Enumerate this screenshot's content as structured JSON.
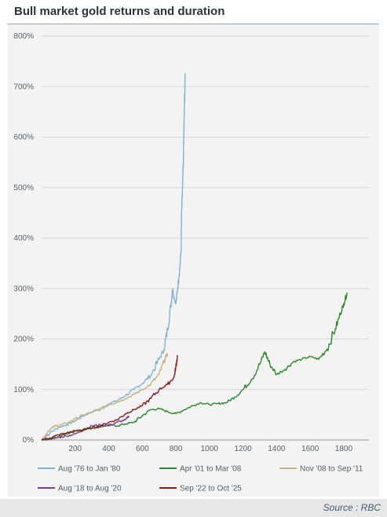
{
  "title": "Bull market gold returns and duration",
  "source": "Source : RBC",
  "chart_data": {
    "type": "line",
    "title": "Bull market gold returns and duration",
    "xlabel": "",
    "ylabel": "",
    "xlim": [
      0,
      1950
    ],
    "ylim": [
      0,
      800
    ],
    "x_ticks": [
      "200",
      "400",
      "600",
      "800",
      "1000",
      "1200",
      "1400",
      "1600",
      "1800"
    ],
    "y_ticks": [
      "0%",
      "100%",
      "200%",
      "300%",
      "400%",
      "500%",
      "600%",
      "700%",
      "800%"
    ],
    "grid": "horizontal",
    "legend_position": "bottom",
    "series": [
      {
        "name": "Aug '76 to Jan '80",
        "color": "#7fb3d3",
        "points": [
          [
            0,
            0
          ],
          [
            50,
            14
          ],
          [
            100,
            25
          ],
          [
            150,
            30
          ],
          [
            200,
            38
          ],
          [
            250,
            48
          ],
          [
            300,
            56
          ],
          [
            350,
            62
          ],
          [
            400,
            72
          ],
          [
            450,
            78
          ],
          [
            500,
            88
          ],
          [
            550,
            100
          ],
          [
            600,
            112
          ],
          [
            650,
            128
          ],
          [
            700,
            160
          ],
          [
            730,
            180
          ],
          [
            750,
            220
          ],
          [
            770,
            265
          ],
          [
            780,
            300
          ],
          [
            790,
            280
          ],
          [
            800,
            270
          ],
          [
            810,
            300
          ],
          [
            820,
            330
          ],
          [
            830,
            370
          ],
          [
            835,
            460
          ],
          [
            840,
            500
          ],
          [
            845,
            560
          ],
          [
            850,
            650
          ],
          [
            855,
            718
          ]
        ]
      },
      {
        "name": "Apr '01 to Mar '08",
        "color": "#2a8a2a",
        "points": [
          [
            0,
            0
          ],
          [
            50,
            2
          ],
          [
            100,
            6
          ],
          [
            150,
            12
          ],
          [
            200,
            18
          ],
          [
            250,
            22
          ],
          [
            300,
            24
          ],
          [
            350,
            26
          ],
          [
            400,
            30
          ],
          [
            450,
            28
          ],
          [
            500,
            32
          ],
          [
            550,
            35
          ],
          [
            600,
            48
          ],
          [
            650,
            60
          ],
          [
            700,
            62
          ],
          [
            750,
            56
          ],
          [
            800,
            52
          ],
          [
            850,
            60
          ],
          [
            900,
            68
          ],
          [
            950,
            74
          ],
          [
            1000,
            70
          ],
          [
            1050,
            72
          ],
          [
            1100,
            74
          ],
          [
            1150,
            85
          ],
          [
            1200,
            100
          ],
          [
            1250,
            120
          ],
          [
            1300,
            150
          ],
          [
            1330,
            175
          ],
          [
            1360,
            150
          ],
          [
            1400,
            130
          ],
          [
            1450,
            140
          ],
          [
            1500,
            155
          ],
          [
            1550,
            160
          ],
          [
            1600,
            165
          ],
          [
            1650,
            160
          ],
          [
            1700,
            180
          ],
          [
            1750,
            220
          ],
          [
            1780,
            250
          ],
          [
            1800,
            270
          ],
          [
            1820,
            292
          ]
        ]
      },
      {
        "name": "Nov '08 to Sep '11",
        "color": "#c8b27a",
        "points": [
          [
            0,
            0
          ],
          [
            40,
            18
          ],
          [
            80,
            28
          ],
          [
            120,
            30
          ],
          [
            160,
            35
          ],
          [
            200,
            42
          ],
          [
            250,
            50
          ],
          [
            300,
            55
          ],
          [
            350,
            60
          ],
          [
            400,
            70
          ],
          [
            450,
            75
          ],
          [
            500,
            82
          ],
          [
            550,
            90
          ],
          [
            600,
            100
          ],
          [
            650,
            110
          ],
          [
            700,
            130
          ],
          [
            730,
            155
          ],
          [
            750,
            172
          ]
        ]
      },
      {
        "name": "Aug '18 to Aug '20",
        "color": "#8a3a8a",
        "points": [
          [
            0,
            0
          ],
          [
            50,
            3
          ],
          [
            100,
            5
          ],
          [
            150,
            8
          ],
          [
            200,
            12
          ],
          [
            250,
            20
          ],
          [
            300,
            28
          ],
          [
            350,
            30
          ],
          [
            400,
            28
          ],
          [
            450,
            35
          ],
          [
            500,
            40
          ],
          [
            520,
            48
          ]
        ]
      },
      {
        "name": "Sep '22 to Oct '25",
        "color": "#8b1a1a",
        "points": [
          [
            0,
            0
          ],
          [
            50,
            4
          ],
          [
            100,
            10
          ],
          [
            150,
            14
          ],
          [
            200,
            18
          ],
          [
            250,
            20
          ],
          [
            300,
            24
          ],
          [
            350,
            28
          ],
          [
            400,
            35
          ],
          [
            450,
            40
          ],
          [
            500,
            52
          ],
          [
            550,
            60
          ],
          [
            600,
            68
          ],
          [
            650,
            82
          ],
          [
            700,
            100
          ],
          [
            750,
            110
          ],
          [
            790,
            125
          ],
          [
            800,
            145
          ],
          [
            810,
            168
          ]
        ]
      }
    ]
  }
}
